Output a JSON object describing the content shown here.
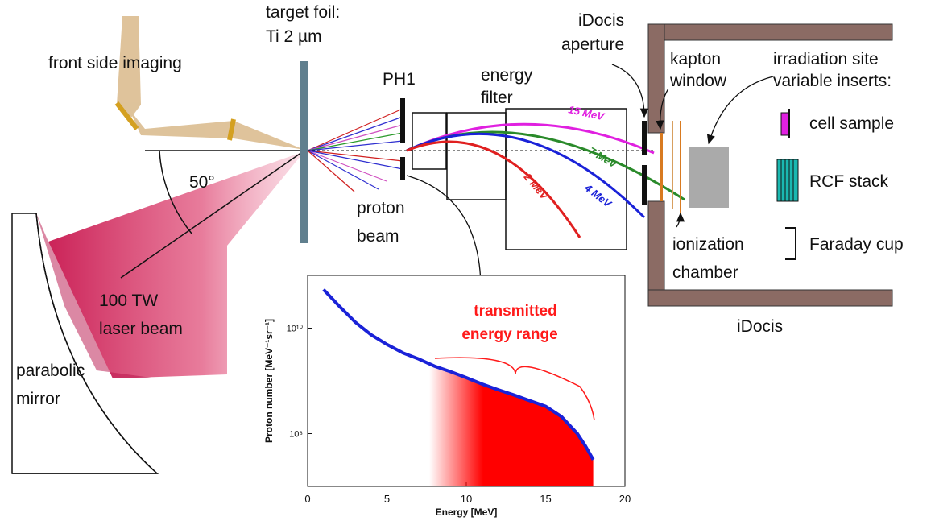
{
  "labels": {
    "front_side_imaging": "front side imaging",
    "target_foil": [
      "target foil:",
      "Ti 2 µm"
    ],
    "ph1": "PH1",
    "energy_filter": [
      "energy",
      "filter"
    ],
    "idocis_aperture": [
      "iDocis",
      "aperture"
    ],
    "kapton_window": [
      "kapton",
      "window"
    ],
    "irradiation_site": [
      "irradiation site",
      "variable inserts:"
    ],
    "cell_sample": "cell sample",
    "rcf_stack": "RCF stack",
    "faraday_cup": "Faraday cup",
    "ionization_chamber": [
      "ionization",
      "chamber"
    ],
    "idocis": "iDocis",
    "angle": "50°",
    "laser_beam": [
      "100 TW",
      "laser beam"
    ],
    "parabolic_mirror": [
      "parabolic",
      "mirror"
    ],
    "proton_beam": [
      "proton",
      "beam"
    ],
    "energies": [
      "15 MeV",
      "7 MeV",
      "4 MeV",
      "2 MeV"
    ]
  },
  "chart_data": {
    "type": "line",
    "x_label": "Energy  [MeV]",
    "y_label": "Proton number [MeV⁻¹sr⁻¹]",
    "x": [
      1,
      2,
      3,
      4,
      5,
      6,
      7,
      8,
      9,
      10,
      11,
      12,
      13,
      14,
      15,
      16,
      17,
      17.5,
      18
    ],
    "values": [
      54000000000.0,
      26000000000.0,
      13000000000.0,
      7500000000.0,
      4900000000.0,
      3400000000.0,
      2600000000.0,
      1900000000.0,
      1500000000.0,
      1150000000.0,
      870000000.0,
      680000000.0,
      540000000.0,
      420000000.0,
      330000000.0,
      210000000.0,
      100000000.0,
      59000000.0,
      32000000.0
    ],
    "color": "#1a22d8",
    "fill_color": "#ff0000",
    "log_y": true,
    "xlim": [
      0,
      20
    ],
    "xticks": [
      0,
      5,
      10,
      15,
      20
    ],
    "ylim": [
      10000000.0,
      100000000000.0
    ],
    "yticks": [
      {
        "value": 100000000.0,
        "label": "10⁸"
      },
      {
        "value": 10000000000.0,
        "label": "10¹⁰"
      }
    ],
    "annotation": [
      "transmitted",
      "energy range"
    ]
  }
}
